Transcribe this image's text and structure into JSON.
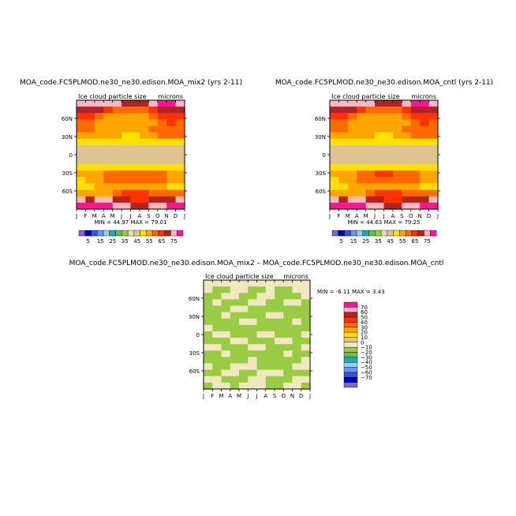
{
  "chart_data": [
    {
      "type": "heatmap",
      "title": "MOA_code.FC5PLMOD.ne30_ne30.edison.MOA_mix2 (yrs 2-11)",
      "subtitle_left": "Ice cloud particle size",
      "subtitle_right": "microns",
      "x_ticks": [
        "J",
        "F",
        "M",
        "A",
        "M",
        "J",
        "J",
        "A",
        "S",
        "O",
        "N",
        "D",
        "J"
      ],
      "y_ticks": [
        "60N",
        "30N",
        "0",
        "30S",
        "60S"
      ],
      "stats": {
        "min_label": "MIN =",
        "min": "44.97",
        "max_label": "MAX =",
        "max": "79.01"
      },
      "colorbar_ticks": [
        "5",
        "15",
        "25",
        "35",
        "45",
        "55",
        "65",
        "75"
      ],
      "colorbar_colors": [
        "#7b68c8",
        "#0000c8",
        "#3355dd",
        "#6699ee",
        "#99ccee",
        "#22aaaa",
        "#66bb55",
        "#99cc44",
        "#e8e0b0",
        "#e0c490",
        "#ffe000",
        "#ffa500",
        "#ff6a00",
        "#ff3300",
        "#b22222",
        "#ffb6c1",
        "#ff1493"
      ],
      "bands": [
        {
          "lat": 80,
          "vals": [
            15,
            15,
            15,
            15,
            15,
            14,
            14,
            14,
            15,
            16,
            16,
            15,
            15
          ]
        },
        {
          "lat": 70,
          "vals": [
            14,
            14,
            14,
            13,
            12,
            12,
            12,
            12,
            13,
            14,
            14,
            14,
            14
          ]
        },
        {
          "lat": 60,
          "vals": [
            13,
            13,
            12,
            11,
            11,
            11,
            11,
            11,
            12,
            13,
            13,
            13,
            13
          ]
        },
        {
          "lat": 50,
          "vals": [
            12,
            12,
            11,
            11,
            11,
            11,
            11,
            11,
            11,
            12,
            13,
            12,
            12
          ]
        },
        {
          "lat": 40,
          "vals": [
            12,
            12,
            11,
            11,
            11,
            11,
            11,
            11,
            12,
            12,
            12,
            12,
            12
          ]
        },
        {
          "lat": 30,
          "vals": [
            11,
            11,
            11,
            11,
            11,
            10,
            10,
            11,
            11,
            12,
            12,
            12,
            11
          ]
        },
        {
          "lat": 20,
          "vals": [
            10,
            10,
            10,
            10,
            10,
            10,
            10,
            10,
            10,
            10,
            10,
            10,
            10
          ]
        },
        {
          "lat": 10,
          "vals": [
            9,
            9,
            9,
            9,
            9,
            9,
            9,
            9,
            9,
            9,
            9,
            9,
            9
          ]
        },
        {
          "lat": 0,
          "vals": [
            9,
            9,
            9,
            9,
            9,
            9,
            9,
            9,
            9,
            9,
            9,
            9,
            9
          ]
        },
        {
          "lat": -10,
          "vals": [
            9,
            9,
            9,
            9,
            9,
            9,
            9,
            9,
            9,
            9,
            9,
            9,
            9
          ]
        },
        {
          "lat": -20,
          "vals": [
            10,
            10,
            10,
            10,
            10,
            10,
            10,
            10,
            10,
            10,
            10,
            10,
            10
          ]
        },
        {
          "lat": -30,
          "vals": [
            11,
            11,
            11,
            12,
            12,
            12,
            12,
            12,
            12,
            12,
            11,
            11,
            11
          ]
        },
        {
          "lat": -40,
          "vals": [
            10,
            11,
            11,
            12,
            12,
            12,
            12,
            12,
            12,
            12,
            11,
            11,
            10
          ]
        },
        {
          "lat": -50,
          "vals": [
            10,
            10,
            11,
            11,
            11,
            11,
            11,
            11,
            11,
            11,
            10,
            10,
            10
          ]
        },
        {
          "lat": -60,
          "vals": [
            11,
            11,
            11,
            11,
            12,
            13,
            13,
            13,
            12,
            12,
            12,
            12,
            11
          ]
        },
        {
          "lat": -70,
          "vals": [
            15,
            14,
            15,
            15,
            14,
            14,
            13,
            13,
            14,
            14,
            14,
            15,
            15
          ]
        },
        {
          "lat": -80,
          "vals": [
            16,
            16,
            16,
            16,
            15,
            15,
            14,
            14,
            15,
            15,
            16,
            16,
            16
          ]
        }
      ]
    },
    {
      "type": "heatmap",
      "title": "MOA_code.FC5PLMOD.ne30_ne30.edison.MOA_cntl (yrs 2-11)",
      "subtitle_left": "Ice cloud particle size",
      "subtitle_right": "microns",
      "x_ticks": [
        "J",
        "F",
        "M",
        "A",
        "M",
        "J",
        "J",
        "A",
        "S",
        "O",
        "N",
        "D",
        "J"
      ],
      "y_ticks": [
        "60N",
        "30N",
        "0",
        "30S",
        "60S"
      ],
      "stats": {
        "min_label": "MIN =",
        "min": "44.63",
        "max_label": "MAX =",
        "max": "79.25"
      },
      "colorbar_ticks": [
        "5",
        "15",
        "25",
        "35",
        "45",
        "55",
        "65",
        "75"
      ],
      "colorbar_colors": [
        "#7b68c8",
        "#0000c8",
        "#3355dd",
        "#6699ee",
        "#99ccee",
        "#22aaaa",
        "#66bb55",
        "#99cc44",
        "#e8e0b0",
        "#e0c490",
        "#ffe000",
        "#ffa500",
        "#ff6a00",
        "#ff3300",
        "#b22222",
        "#ffb6c1",
        "#ff1493"
      ],
      "bands": [
        {
          "lat": 80,
          "vals": [
            15,
            15,
            15,
            15,
            15,
            14,
            14,
            14,
            15,
            16,
            16,
            15,
            15
          ]
        },
        {
          "lat": 70,
          "vals": [
            14,
            14,
            14,
            13,
            12,
            12,
            12,
            12,
            13,
            14,
            14,
            14,
            14
          ]
        },
        {
          "lat": 60,
          "vals": [
            13,
            13,
            12,
            11,
            11,
            11,
            11,
            11,
            12,
            13,
            13,
            13,
            13
          ]
        },
        {
          "lat": 50,
          "vals": [
            12,
            12,
            11,
            11,
            11,
            11,
            11,
            11,
            11,
            12,
            13,
            12,
            12
          ]
        },
        {
          "lat": 40,
          "vals": [
            12,
            12,
            11,
            11,
            11,
            11,
            11,
            11,
            12,
            12,
            12,
            12,
            12
          ]
        },
        {
          "lat": 30,
          "vals": [
            11,
            11,
            11,
            11,
            11,
            10,
            10,
            11,
            11,
            12,
            12,
            12,
            11
          ]
        },
        {
          "lat": 20,
          "vals": [
            10,
            10,
            10,
            10,
            10,
            10,
            10,
            10,
            10,
            10,
            10,
            10,
            10
          ]
        },
        {
          "lat": 10,
          "vals": [
            9,
            9,
            9,
            9,
            9,
            9,
            9,
            9,
            9,
            9,
            9,
            9,
            9
          ]
        },
        {
          "lat": 0,
          "vals": [
            9,
            9,
            9,
            9,
            9,
            9,
            9,
            9,
            9,
            9,
            9,
            9,
            9
          ]
        },
        {
          "lat": -10,
          "vals": [
            9,
            9,
            9,
            9,
            9,
            9,
            9,
            9,
            9,
            9,
            9,
            9,
            9
          ]
        },
        {
          "lat": -20,
          "vals": [
            10,
            10,
            10,
            10,
            10,
            10,
            10,
            10,
            10,
            10,
            10,
            10,
            10
          ]
        },
        {
          "lat": -30,
          "vals": [
            11,
            11,
            11,
            12,
            12,
            13,
            13,
            12,
            12,
            12,
            11,
            11,
            11
          ]
        },
        {
          "lat": -40,
          "vals": [
            10,
            11,
            11,
            12,
            12,
            12,
            12,
            12,
            12,
            12,
            11,
            11,
            10
          ]
        },
        {
          "lat": -50,
          "vals": [
            10,
            10,
            11,
            11,
            11,
            11,
            11,
            11,
            11,
            11,
            10,
            10,
            10
          ]
        },
        {
          "lat": -60,
          "vals": [
            11,
            11,
            11,
            11,
            12,
            13,
            13,
            13,
            12,
            12,
            12,
            12,
            11
          ]
        },
        {
          "lat": -70,
          "vals": [
            15,
            14,
            15,
            15,
            14,
            14,
            13,
            13,
            14,
            14,
            14,
            15,
            15
          ]
        },
        {
          "lat": -80,
          "vals": [
            16,
            16,
            16,
            16,
            15,
            15,
            14,
            14,
            15,
            15,
            16,
            16,
            16
          ]
        }
      ]
    },
    {
      "type": "heatmap",
      "title": "MOA_code.FC5PLMOD.ne30_ne30.edison.MOA_mix2 – MOA_code.FC5PLMOD.ne30_ne30.edison.MOA_cntl",
      "subtitle_left": "Ice cloud particle size",
      "subtitle_right": "microns",
      "x_ticks": [
        "J",
        "F",
        "M",
        "A",
        "M",
        "J",
        "J",
        "A",
        "S",
        "O",
        "N",
        "D",
        "J"
      ],
      "y_ticks": [
        "60N",
        "30N",
        "0",
        "30S",
        "60S"
      ],
      "stats": {
        "min_label": "MIN =",
        "min": "-6.11",
        "max_label": "MAX =",
        "max": "3.43"
      },
      "colorbar_ticks": [
        "70",
        "60",
        "50",
        "40",
        "30",
        "20",
        "10",
        "0",
        "−10",
        "−20",
        "−30",
        "−40",
        "−50",
        "−60",
        "−70"
      ],
      "colorbar_colors": [
        "#ff1493",
        "#ffb6c1",
        "#b22222",
        "#ff3300",
        "#ff6a00",
        "#ffa500",
        "#ffe000",
        "#e0c490",
        "#f2e8c0",
        "#99cc44",
        "#66bb55",
        "#22aaaa",
        "#99ccee",
        "#6699ee",
        "#3355dd",
        "#0000c8",
        "#7b68c8"
      ],
      "bands": [
        {
          "lat": 80,
          "vals": [
            8,
            8,
            8,
            8,
            8,
            8,
            8,
            8,
            8,
            8,
            8,
            8,
            8
          ]
        },
        {
          "lat": 70,
          "vals": [
            8,
            9,
            9,
            8,
            8,
            9,
            9,
            8,
            9,
            9,
            8,
            8,
            9
          ]
        },
        {
          "lat": 60,
          "vals": [
            9,
            9,
            8,
            8,
            9,
            9,
            8,
            8,
            9,
            9,
            9,
            8,
            9
          ]
        },
        {
          "lat": 50,
          "vals": [
            9,
            8,
            9,
            9,
            9,
            8,
            8,
            9,
            9,
            8,
            8,
            9,
            9
          ]
        },
        {
          "lat": 40,
          "vals": [
            9,
            9,
            9,
            8,
            8,
            9,
            9,
            9,
            9,
            9,
            9,
            9,
            9
          ]
        },
        {
          "lat": 30,
          "vals": [
            9,
            9,
            8,
            9,
            9,
            9,
            9,
            8,
            8,
            9,
            9,
            9,
            9
          ]
        },
        {
          "lat": 20,
          "vals": [
            9,
            9,
            9,
            9,
            8,
            8,
            9,
            9,
            9,
            9,
            8,
            9,
            9
          ]
        },
        {
          "lat": 10,
          "vals": [
            8,
            9,
            9,
            9,
            9,
            9,
            9,
            9,
            9,
            9,
            9,
            9,
            8
          ]
        },
        {
          "lat": 0,
          "vals": [
            9,
            8,
            8,
            9,
            9,
            9,
            8,
            8,
            9,
            9,
            9,
            8,
            9
          ]
        },
        {
          "lat": -10,
          "vals": [
            9,
            9,
            9,
            8,
            8,
            9,
            9,
            9,
            8,
            8,
            9,
            9,
            9
          ]
        },
        {
          "lat": -20,
          "vals": [
            8,
            8,
            9,
            9,
            9,
            8,
            8,
            9,
            9,
            9,
            9,
            8,
            8
          ]
        },
        {
          "lat": -30,
          "vals": [
            9,
            9,
            8,
            9,
            9,
            9,
            9,
            9,
            9,
            8,
            9,
            9,
            9
          ]
        },
        {
          "lat": -40,
          "vals": [
            9,
            9,
            9,
            9,
            9,
            8,
            9,
            9,
            9,
            9,
            9,
            8,
            9
          ]
        },
        {
          "lat": -50,
          "vals": [
            8,
            9,
            9,
            8,
            8,
            8,
            9,
            9,
            9,
            9,
            8,
            8,
            8
          ]
        },
        {
          "lat": -60,
          "vals": [
            9,
            9,
            8,
            8,
            9,
            9,
            8,
            8,
            8,
            9,
            9,
            9,
            9
          ]
        },
        {
          "lat": -70,
          "vals": [
            8,
            8,
            9,
            9,
            9,
            8,
            8,
            9,
            9,
            9,
            8,
            8,
            8
          ]
        },
        {
          "lat": -80,
          "vals": [
            9,
            8,
            8,
            9,
            8,
            8,
            8,
            9,
            9,
            8,
            8,
            9,
            9
          ]
        }
      ]
    }
  ]
}
